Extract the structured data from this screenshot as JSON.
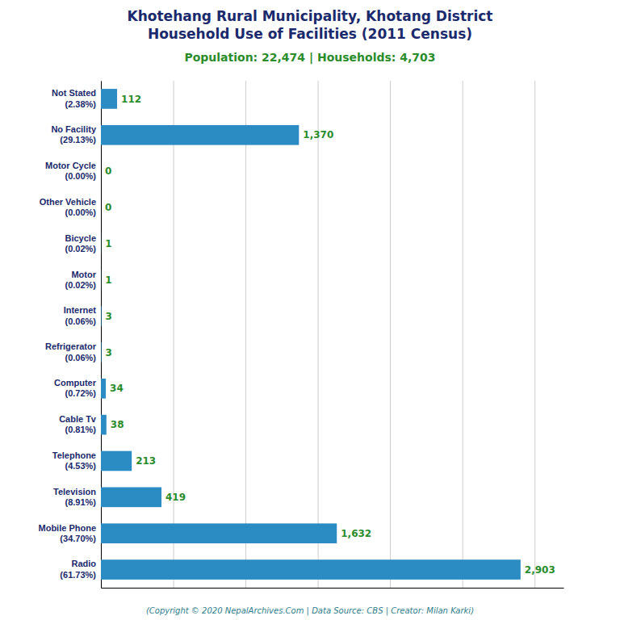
{
  "chart_data": {
    "type": "bar",
    "orientation": "horizontal",
    "title": "Khotehang Rural Municipality, Khotang District\nHousehold Use of Facilities (2011 Census)",
    "subtitle": "Population: 22,474 | Households: 4,703",
    "annotations": [
      "(Copyright © 2020 NepalArchives.Com | Data Source: CBS | Creator: Milan Karki)"
    ],
    "categories": [
      "Not Stated\n(2.38%)",
      "No Facility\n(29.13%)",
      "Motor Cycle\n(0.00%)",
      "Other Vehicle\n(0.00%)",
      "Bicycle\n(0.02%)",
      "Motor\n(0.02%)",
      "Internet\n(0.06%)",
      "Refrigerator\n(0.06%)",
      "Computer\n(0.72%)",
      "Cable Tv\n(0.81%)",
      "Telephone\n(4.53%)",
      "Television\n(8.91%)",
      "Mobile Phone\n(34.70%)",
      "Radio\n(61.73%)"
    ],
    "values": [
      112,
      1370,
      0,
      0,
      1,
      1,
      3,
      3,
      34,
      38,
      213,
      419,
      1632,
      2903
    ],
    "value_labels": [
      "112",
      "1,370",
      "0",
      "0",
      "1",
      "1",
      "3",
      "3",
      "34",
      "38",
      "213",
      "419",
      "1,632",
      "2,903"
    ],
    "data_labels": true,
    "color": "#2b8cc4",
    "xlim": [
      0,
      3200
    ],
    "xticks": [
      0,
      500,
      1000,
      1500,
      2000,
      2500,
      3000
    ],
    "grid": true,
    "tick_labels": "y"
  }
}
